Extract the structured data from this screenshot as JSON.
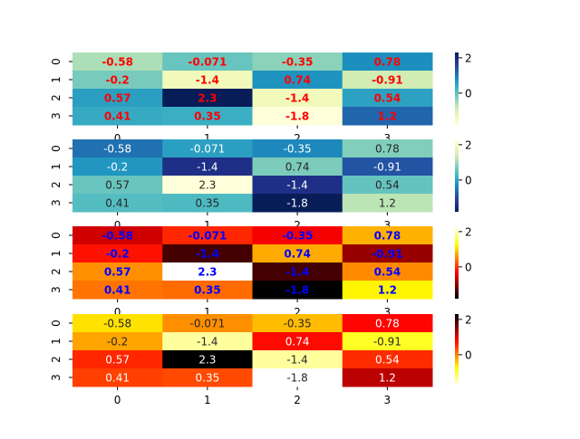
{
  "chart_data": [
    {
      "type": "heatmap",
      "colormap": "YlGnBu",
      "annotation_color": "#ff0000",
      "annotation_weight": "bold",
      "x_tick_labels": [
        "0",
        "1",
        "2",
        "3"
      ],
      "y_tick_labels": [
        "0",
        "1",
        "2",
        "3"
      ],
      "values": [
        [
          -0.58,
          -0.071,
          -0.35,
          0.78
        ],
        [
          -0.2,
          -1.4,
          0.74,
          -0.91
        ],
        [
          0.57,
          2.3,
          -1.4,
          0.54
        ],
        [
          0.41,
          0.35,
          -1.8,
          1.2
        ]
      ],
      "colorbar_ticks": [
        "2",
        "0"
      ],
      "colorbar_tick_values": [
        2,
        0
      ],
      "vmin": -1.8,
      "vmax": 2.3
    },
    {
      "type": "heatmap",
      "colormap": "YlGnBu_r",
      "annotation_color": "auto",
      "annotation_weight": "normal",
      "x_tick_labels": [
        "0",
        "1",
        "2",
        "3"
      ],
      "y_tick_labels": [
        "0",
        "1",
        "2",
        "3"
      ],
      "values": [
        [
          -0.58,
          -0.071,
          -0.35,
          0.78
        ],
        [
          -0.2,
          -1.4,
          0.74,
          -0.91
        ],
        [
          0.57,
          2.3,
          -1.4,
          0.54
        ],
        [
          0.41,
          0.35,
          -1.8,
          1.2
        ]
      ],
      "colorbar_ticks": [
        "2",
        "0"
      ],
      "colorbar_tick_values": [
        2,
        0
      ],
      "vmin": -1.8,
      "vmax": 2.3
    },
    {
      "type": "heatmap",
      "colormap": "hot",
      "annotation_color": "#0000ff",
      "annotation_weight": "bold",
      "x_tick_labels": [
        "0",
        "1",
        "2",
        "3"
      ],
      "y_tick_labels": [
        "0",
        "1",
        "2",
        "3"
      ],
      "values": [
        [
          -0.58,
          -0.071,
          -0.35,
          0.78
        ],
        [
          -0.2,
          -1.4,
          0.74,
          -0.91
        ],
        [
          0.57,
          2.3,
          -1.4,
          0.54
        ],
        [
          0.41,
          0.35,
          -1.8,
          1.2
        ]
      ],
      "colorbar_ticks": [
        "2",
        "0"
      ],
      "colorbar_tick_values": [
        2,
        0
      ],
      "vmin": -1.8,
      "vmax": 2.3
    },
    {
      "type": "heatmap",
      "colormap": "hot_r",
      "annotation_color": "auto",
      "annotation_weight": "normal",
      "x_tick_labels": [
        "0",
        "1",
        "2",
        "3"
      ],
      "y_tick_labels": [
        "0",
        "1",
        "2",
        "3"
      ],
      "values": [
        [
          -0.58,
          -0.071,
          -0.35,
          0.78
        ],
        [
          -0.2,
          -1.4,
          0.74,
          -0.91
        ],
        [
          0.57,
          2.3,
          -1.4,
          0.54
        ],
        [
          0.41,
          0.35,
          -1.8,
          1.2
        ]
      ],
      "colorbar_ticks": [
        "2",
        "0"
      ],
      "colorbar_tick_values": [
        2,
        0
      ],
      "vmin": -1.8,
      "vmax": 2.3
    }
  ]
}
